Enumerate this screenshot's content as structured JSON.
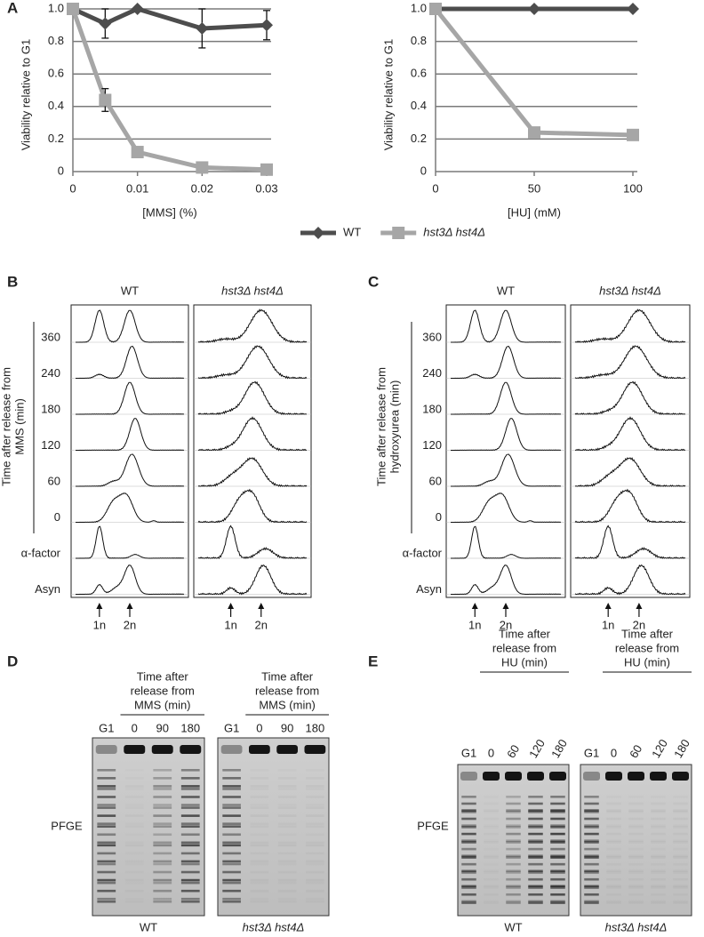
{
  "chart_data": [
    {
      "type": "line",
      "x_label": "[MMS] (%)",
      "y_label": "Viability relative to G1",
      "x": [
        0,
        0.005,
        0.01,
        0.02,
        0.03
      ],
      "xlim": [
        0,
        0.03
      ],
      "xticks": [
        0,
        0.01,
        0.02,
        0.03
      ],
      "ylim": [
        0,
        1
      ],
      "yticks": [
        0,
        0.2,
        0.4,
        0.6,
        0.8,
        {
          "value": 1,
          "label": "1.0"
        }
      ],
      "grid": true,
      "legend": "bottom",
      "series": [
        {
          "name": "WT",
          "color": "#4d4d4d",
          "marker": "diamond",
          "values": [
            1.0,
            0.91,
            1.0,
            0.88,
            0.9
          ],
          "errors": [
            0,
            0.09,
            0,
            0.12,
            0.09
          ]
        },
        {
          "name": "hst3Δ hst4Δ",
          "color": "#a6a6a6",
          "marker": "square",
          "values": [
            1.0,
            0.44,
            0.12,
            0.025,
            0.012
          ],
          "errors": [
            0,
            0.07,
            0.03,
            0.01,
            0.01
          ]
        }
      ]
    },
    {
      "type": "line",
      "x_label": "[HU] (mM)",
      "y_label": "Viability relative to G1",
      "x": [
        0,
        50,
        100
      ],
      "xlim": [
        0,
        100
      ],
      "xticks": [
        0,
        50,
        100
      ],
      "ylim": [
        0,
        1
      ],
      "yticks": [
        0,
        0.2,
        0.4,
        0.6,
        0.8,
        {
          "value": 1,
          "label": "1.0"
        }
      ],
      "grid": true,
      "series": [
        {
          "color": "#4d4d4d",
          "marker": "diamond",
          "values": [
            1.0,
            1.0,
            1.0
          ],
          "errors": [
            0,
            0,
            0
          ]
        },
        {
          "color": "#a6a6a6",
          "marker": "square",
          "values": [
            1.0,
            0.24,
            0.225
          ],
          "errors": [
            0,
            0.02,
            0.03
          ]
        }
      ]
    }
  ],
  "panels": {
    "a": {
      "label": "A"
    },
    "b": {
      "label": "B",
      "columns": [
        "WT",
        "hst3Δ hst4Δ"
      ],
      "axis_label": [
        "Time after release from",
        "MMS (min)"
      ],
      "rows": [
        "360",
        "240",
        "180",
        "120",
        "60",
        "0",
        "α-factor",
        "Asyn"
      ],
      "markers": [
        "1n",
        "2n"
      ]
    },
    "c": {
      "label": "C",
      "columns": [
        "WT",
        "hst3Δ hst4Δ"
      ],
      "axis_label": [
        "Time after release from",
        "hydroxyurea (min)"
      ],
      "rows": [
        "360",
        "240",
        "180",
        "120",
        "60",
        "0",
        "α-factor",
        "Asyn"
      ],
      "markers": [
        "1n",
        "2n"
      ]
    },
    "d": {
      "label": "D",
      "header": [
        "Time after",
        "release from",
        "MMS (min)"
      ],
      "lanes": [
        "G1",
        "0",
        "90",
        "180"
      ],
      "row_label": "PFGE",
      "columns": [
        "WT",
        "hst3Δ hst4Δ"
      ]
    },
    "e": {
      "label": "E",
      "header": [
        "Time after",
        "release from",
        "HU (min)"
      ],
      "lanes": [
        "G1",
        "0",
        "60",
        "120",
        "180"
      ],
      "row_label": "PFGE",
      "columns": [
        "WT",
        "hst3Δ hst4Δ"
      ]
    }
  }
}
